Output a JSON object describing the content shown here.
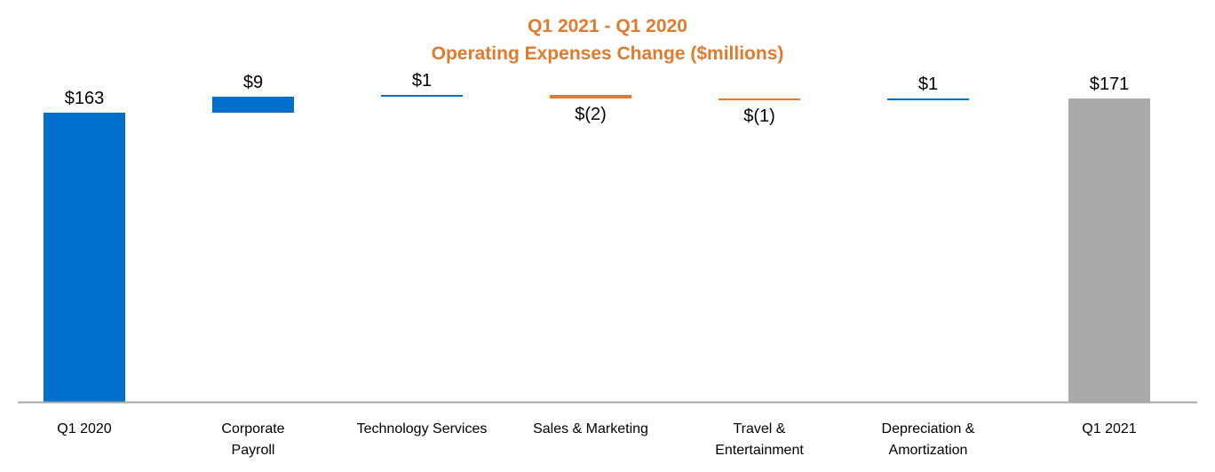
{
  "chart_data": {
    "type": "waterfall",
    "title": "Q1 2021 - Q1 2020",
    "subtitle": "Operating Expenses Change ($millions)",
    "categories": [
      "Q1 2020",
      "Corporate Payroll",
      "Technology Services",
      "Sales & Marketing",
      "Travel & Entertainment",
      "Depreciation & Amortization",
      "Q1 2021"
    ],
    "category_lines": [
      [
        "Q1 2020"
      ],
      [
        "Corporate",
        "Payroll"
      ],
      [
        "Technology Services"
      ],
      [
        "Sales & Marketing"
      ],
      [
        "Travel &",
        "Entertainment"
      ],
      [
        "Depreciation &",
        "Amortization"
      ],
      [
        "Q1 2021"
      ]
    ],
    "values": [
      163,
      9,
      1,
      -2,
      -1,
      1,
      171
    ],
    "kinds": [
      "total",
      "delta",
      "delta",
      "delta",
      "delta",
      "delta",
      "total"
    ],
    "data_labels": [
      "$163",
      "$9",
      "$1",
      "$(2)",
      "$(1)",
      "$1",
      "$171"
    ],
    "ylim": [
      0,
      201
    ],
    "colors": {
      "title": "#E07B2E",
      "increase": "#0070CC",
      "decrease": "#E07B2E",
      "total_start": "#0070CC",
      "total_end": "#AAAAAA",
      "axis": "#A6A6A6"
    }
  }
}
